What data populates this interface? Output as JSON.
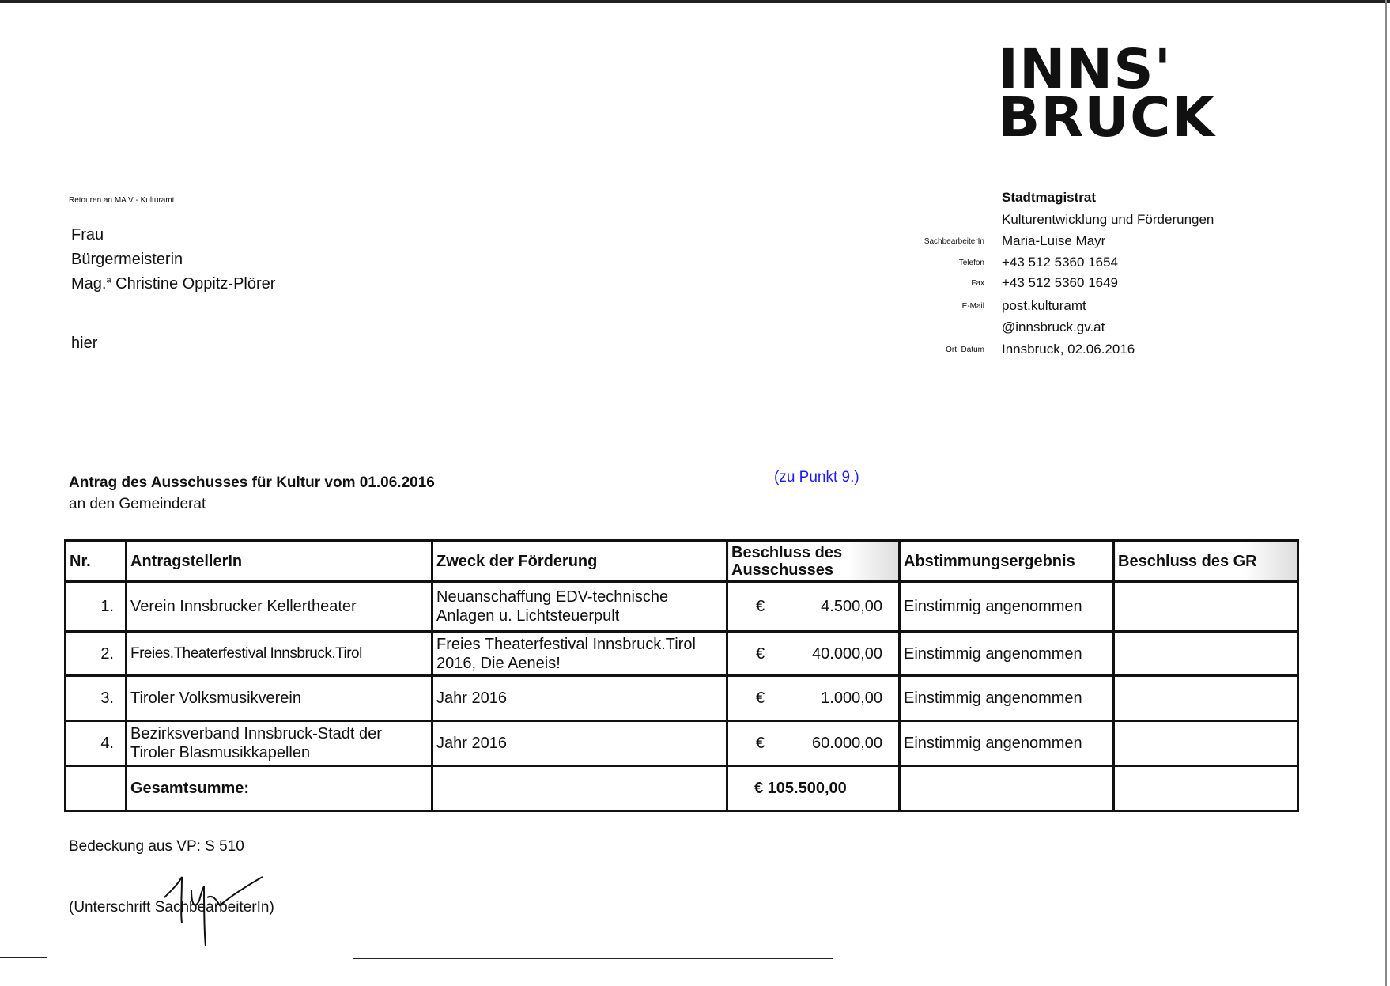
{
  "logo": {
    "line1": "INNS'",
    "line2": "BRUCK"
  },
  "return_address": "Retouren an MA V - Kulturamt",
  "recipient": {
    "line1": "Frau",
    "line2": "Bürgermeisterin",
    "line3_prefix": "Mag.",
    "line3_sup": "a",
    "line3_name": " Christine Oppitz-Plörer",
    "line4": "hier"
  },
  "sender": {
    "org": "Stadtmagistrat",
    "dept": "Kulturentwicklung und Förderungen",
    "fields": [
      {
        "label": "SachbearbeiterIn",
        "value": "Maria-Luise Mayr"
      },
      {
        "label": "Telefon",
        "value": "+43 512 5360 1654"
      },
      {
        "label": "Fax",
        "value": "+43 512 5360 1649"
      },
      {
        "label": "E-Mail",
        "value": "post.kulturamt"
      },
      {
        "label": "",
        "value": "@innsbruck.gv.at"
      },
      {
        "label": "Ort, Datum",
        "value": "Innsbruck, 02.06.2016"
      }
    ]
  },
  "heading": {
    "title": "Antrag des Ausschusses für Kultur vom 01.06.2016",
    "subtitle": "an den Gemeinderat",
    "reference": "(zu Punkt 9.)"
  },
  "colors": {
    "reference": "#1a1aff"
  },
  "table": {
    "headers": [
      "Nr.",
      "AntragstellerIn",
      "Zweck der Förderung",
      "Beschluss des Ausschusses",
      "Abstimmungsergebnis",
      "Beschluss des GR"
    ],
    "rows": [
      {
        "nr": "1.",
        "applicant": "Verein Innsbrucker Kellertheater",
        "purpose": "Neuanschaffung EDV-technische Anlagen u. Lichtsteuerpult",
        "currency": "€",
        "amount": "4.500,00",
        "vote": "Einstimmig angenommen",
        "gr": ""
      },
      {
        "nr": "2.",
        "applicant": "Freies.Theaterfestival Innsbruck.Tirol",
        "purpose": "Freies Theaterfestival Innsbruck.Tirol 2016, Die Aeneis!",
        "currency": "€",
        "amount": "40.000,00",
        "vote": "Einstimmig angenommen",
        "gr": ""
      },
      {
        "nr": "3.",
        "applicant": "Tiroler Volksmusikverein",
        "purpose": "Jahr 2016",
        "currency": "€",
        "amount": "1.000,00",
        "vote": "Einstimmig angenommen",
        "gr": ""
      },
      {
        "nr": "4.",
        "applicant": "Bezirksverband Innsbruck-Stadt der Tiroler Blasmusikkapellen",
        "purpose": "Jahr 2016",
        "currency": "€",
        "amount": "60.000,00",
        "vote": "Einstimmig angenommen",
        "gr": ""
      }
    ],
    "total_label": "Gesamtsumme:",
    "total_value": "€ 105.500,00"
  },
  "footer": {
    "coverage": "Bedeckung aus VP:  S 510",
    "signature_label": "(Unterschrift SachbearbeiterIn)"
  }
}
